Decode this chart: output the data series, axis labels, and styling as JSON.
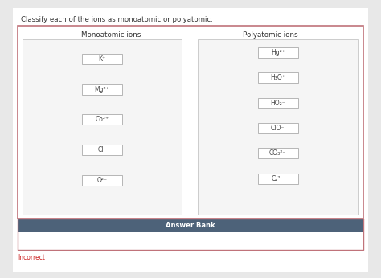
{
  "title": "Classify each of the ions as monoatomic or polyatomic.",
  "monoatomic_header": "Monoatomic ions",
  "polyatomic_header": "Polyatomic ions",
  "monoatomic_ions": [
    "K⁺",
    "Mg²⁺",
    "Co²⁺",
    "Cl⁻",
    "O²⁻"
  ],
  "polyatomic_ions": [
    "Hg²⁺",
    "H₃O⁺",
    "HO₂⁻",
    "ClO⁻",
    "CO₃²⁻",
    "C₂²⁻"
  ],
  "answer_bank_label": "Answer Bank",
  "bg_color": "#e8e8e8",
  "white": "#ffffff",
  "outer_border_color": "#c0737a",
  "inner_border_color": "#cccccc",
  "inner_bg": "#f5f5f5",
  "answer_bank_bg": "#4d6279",
  "answer_bank_text": "#ffffff",
  "incorrect_text": "Incorrect",
  "incorrect_color": "#cc2222",
  "title_color": "#333333",
  "header_color": "#333333",
  "ion_text_color": "#444444",
  "ion_box_border": "#aaaaaa"
}
